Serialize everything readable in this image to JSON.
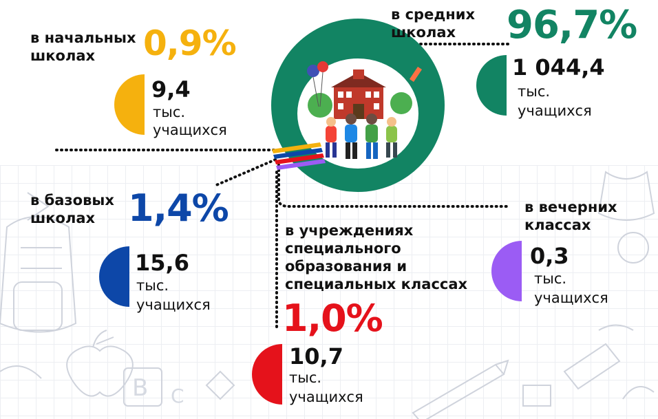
{
  "colors": {
    "primary": "#f5b10e",
    "basic": "#0d47a8",
    "secondary": "#128463",
    "special": "#e5121b",
    "evening": "#9b5cf4",
    "center_circle": "#128463"
  },
  "primary": {
    "label_line1": "в начальных",
    "label_line2": "школах",
    "percent": "0,9%",
    "count": "9,4",
    "unit1": "тыс.",
    "unit2": "учащихся"
  },
  "basic": {
    "label_line1": "в базовых",
    "label_line2": "школах",
    "percent": "1,4%",
    "count": "15,6",
    "unit1": "тыс.",
    "unit2": "учащихся"
  },
  "secondary": {
    "label_line1": "в средних",
    "label_line2": "школах",
    "percent": "96,7%",
    "count": "1 044,4",
    "unit1": "тыс.",
    "unit2": "учащихся"
  },
  "evening": {
    "label_line1": "в вечерних",
    "label_line2": "классах",
    "percent": "",
    "count": "0,3",
    "unit1": "тыс.",
    "unit2": "учащихся"
  },
  "special": {
    "label_line1": "в учреждениях",
    "label_line2": "специального",
    "label_line3": "образования и",
    "label_line4": "специальных классах",
    "percent": "1,0%",
    "count": "10,7",
    "unit1": "тыс.",
    "unit2": "учащихся"
  },
  "icons": [
    "school-illustration-icon",
    "doodle-bag-icon",
    "doodle-apple-icon",
    "doodle-abc-icon",
    "doodle-pencil-icon"
  ]
}
